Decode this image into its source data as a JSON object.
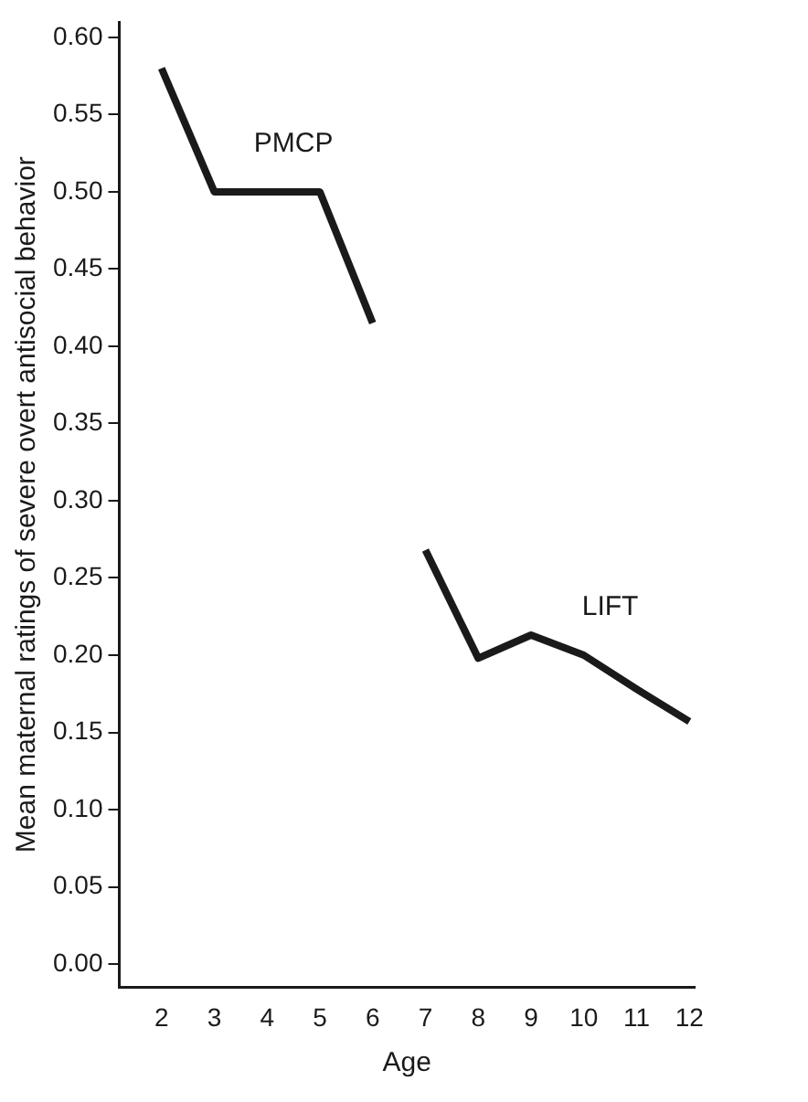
{
  "chart_data": {
    "type": "line",
    "xlabel": "Age",
    "ylabel": "Mean maternal ratings of severe overt antisocial behavior",
    "series": [
      {
        "name": "PMCP",
        "color": "#1a1a1a",
        "x": [
          2,
          3,
          4,
          5,
          6
        ],
        "values": [
          0.58,
          0.5,
          0.5,
          0.5,
          0.415
        ]
      },
      {
        "name": "LIFT",
        "color": "#1a1a1a",
        "x": [
          7,
          8,
          9,
          10,
          11,
          12
        ],
        "values": [
          0.268,
          0.198,
          0.213,
          0.2,
          0.178,
          0.157
        ]
      }
    ],
    "xlim": [
      1.2,
      12.1
    ],
    "xticks": [
      2,
      3,
      4,
      5,
      6,
      7,
      8,
      9,
      10,
      11,
      12
    ],
    "ylim": [
      -0.015,
      0.61
    ],
    "yticks": [
      {
        "value": 0,
        "label": "0.00"
      },
      {
        "value": 0.05,
        "label": "0.05"
      },
      {
        "value": 0.1,
        "label": "0.10"
      },
      {
        "value": 0.15,
        "label": "0.15"
      },
      {
        "value": 0.2,
        "label": "0.20"
      },
      {
        "value": 0.25,
        "label": "0.25"
      },
      {
        "value": 0.3,
        "label": "0.30"
      },
      {
        "value": 0.35,
        "label": "0.35"
      },
      {
        "value": 0.4,
        "label": "0.40"
      },
      {
        "value": 0.45,
        "label": "0.45"
      },
      {
        "value": 0.5,
        "label": "0.50"
      },
      {
        "value": 0.55,
        "label": "0.55"
      },
      {
        "value": 0.6,
        "label": "0.60"
      }
    ],
    "grid": false,
    "legend": false,
    "marker": "none",
    "line_style": "solid"
  }
}
